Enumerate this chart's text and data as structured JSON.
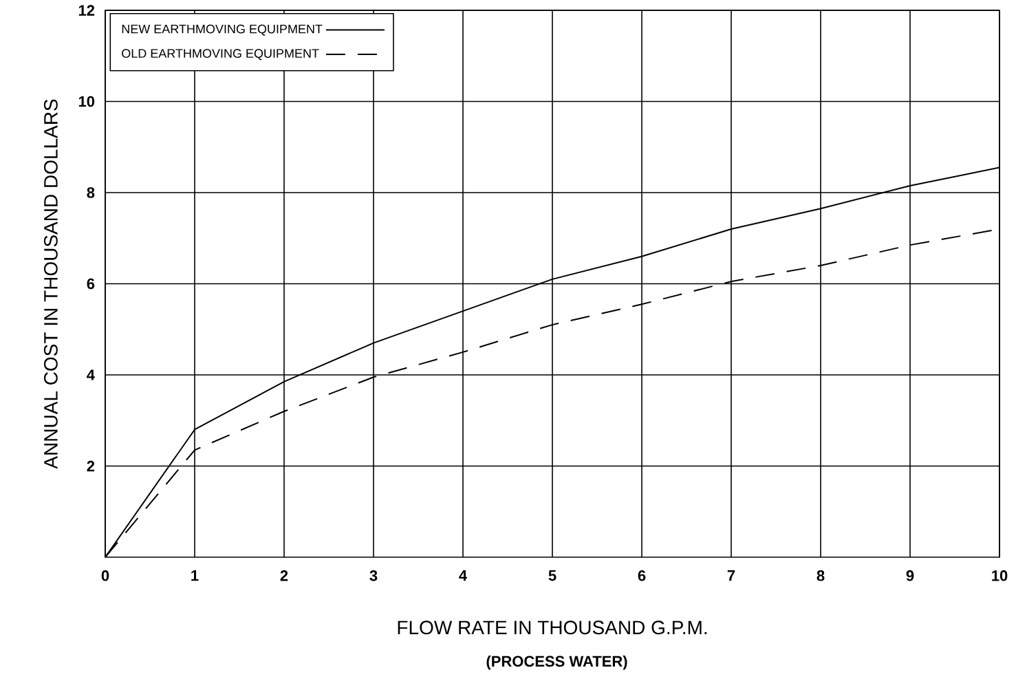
{
  "chart_data": {
    "type": "line",
    "xlabel": "FLOW RATE IN THOUSAND G.P.M.",
    "ylabel": "ANNUAL COST IN THOUSAND DOLLARS",
    "annotations": [
      "(PROCESS WATER)"
    ],
    "x": [
      0,
      1,
      2,
      3,
      4,
      5,
      6,
      7,
      8,
      9,
      10
    ],
    "series": [
      {
        "name": "NEW EARTHMOVING EQUIPMENT",
        "color": "#000000",
        "line_style": "solid",
        "values": [
          0,
          2.8,
          3.85,
          4.7,
          5.4,
          6.1,
          6.6,
          7.2,
          7.65,
          8.15,
          8.55
        ]
      },
      {
        "name": "OLD EARTHMOVING EQUIPMENT",
        "color": "#000000",
        "line_style": "dashed",
        "values": [
          0,
          2.35,
          3.2,
          3.95,
          4.5,
          5.1,
          5.55,
          6.05,
          6.4,
          6.85,
          7.2
        ]
      }
    ],
    "xlim": [
      0,
      10
    ],
    "ylim": [
      0,
      12
    ],
    "xticks": [
      0,
      1,
      2,
      3,
      4,
      5,
      6,
      7,
      8,
      9,
      10
    ],
    "yticks": [
      2,
      4,
      6,
      8,
      10,
      12
    ],
    "grid": true,
    "legend": "top left",
    "marker": "none"
  }
}
